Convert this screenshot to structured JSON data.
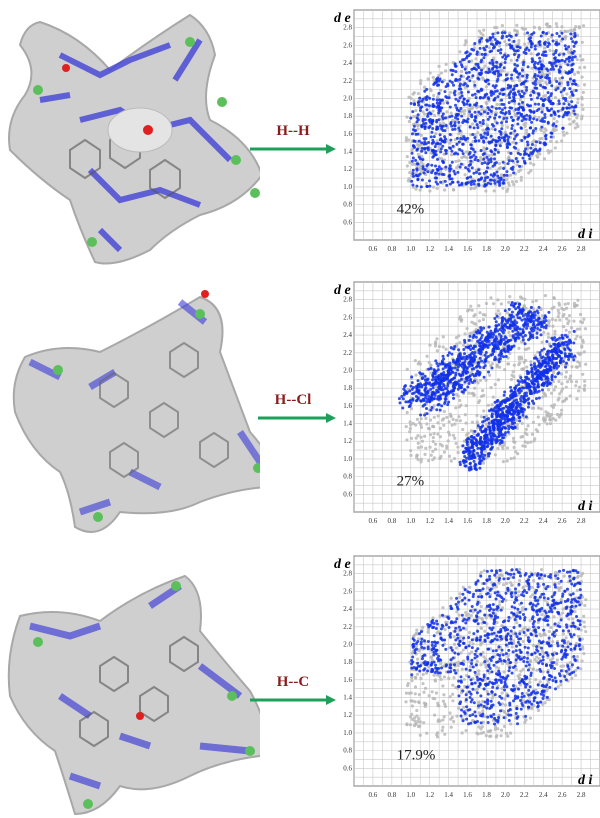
{
  "colors": {
    "surface": "#cfcfcf",
    "surface_edge": "#a8a8a8",
    "contact_blue": "#3a3ad8",
    "contact_red": "#e02020",
    "chlorine": "#5bbf5b",
    "arrow": "#1fa05a",
    "label": "#8a1c1c",
    "fp_blue": "#1030e8",
    "fp_grey": "#b5b5b5"
  },
  "axes": {
    "ylabel": "d e",
    "xlabel": "d i",
    "y_ticks": [
      "0.6",
      "0.8",
      "1.0",
      "1.2",
      "1.4",
      "1.6",
      "1.8",
      "2.0",
      "2.2",
      "2.4",
      "2.6",
      "2.8"
    ],
    "x_ticks": [
      "0.6",
      "0.8",
      "1.0",
      "1.2",
      "1.4",
      "1.6",
      "1.8",
      "2.0",
      "2.2",
      "2.4",
      "2.6",
      "2.8"
    ]
  },
  "panels": [
    {
      "contact_label": "H--H",
      "percentage": "42%"
    },
    {
      "contact_label": "H--Cl",
      "percentage": "27%"
    },
    {
      "contact_label": "H--C",
      "percentage": "17.9%"
    }
  ]
}
